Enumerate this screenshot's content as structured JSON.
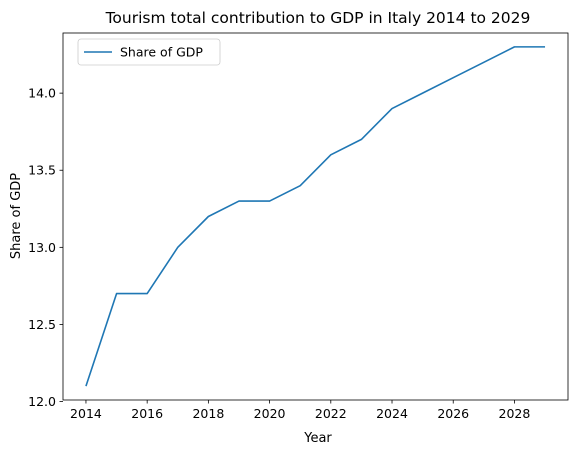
{
  "chart_data": {
    "type": "line",
    "title": "Tourism total contribution to GDP in Italy 2014 to 2029",
    "xlabel": "Year",
    "ylabel": "Share of GDP",
    "x": [
      2014,
      2015,
      2016,
      2017,
      2018,
      2019,
      2020,
      2021,
      2022,
      2023,
      2024,
      2025,
      2026,
      2027,
      2028,
      2029
    ],
    "series": [
      {
        "name": "Share of GDP",
        "color": "#1f77b4",
        "values": [
          12.1,
          12.7,
          12.7,
          13.0,
          13.2,
          13.3,
          13.3,
          13.4,
          13.6,
          13.7,
          13.9,
          14.0,
          14.1,
          14.2,
          14.3,
          14.3
        ]
      }
    ],
    "xticks": [
      "2014",
      "2016",
      "2018",
      "2020",
      "2022",
      "2024",
      "2026",
      "2028"
    ],
    "yticks": [
      "12.0",
      "12.5",
      "13.0",
      "13.5",
      "14.0"
    ],
    "xlim": [
      2013.25,
      2029.75
    ],
    "ylim": [
      12.01,
      14.39
    ],
    "grid": false,
    "legend_position": "upper left"
  }
}
